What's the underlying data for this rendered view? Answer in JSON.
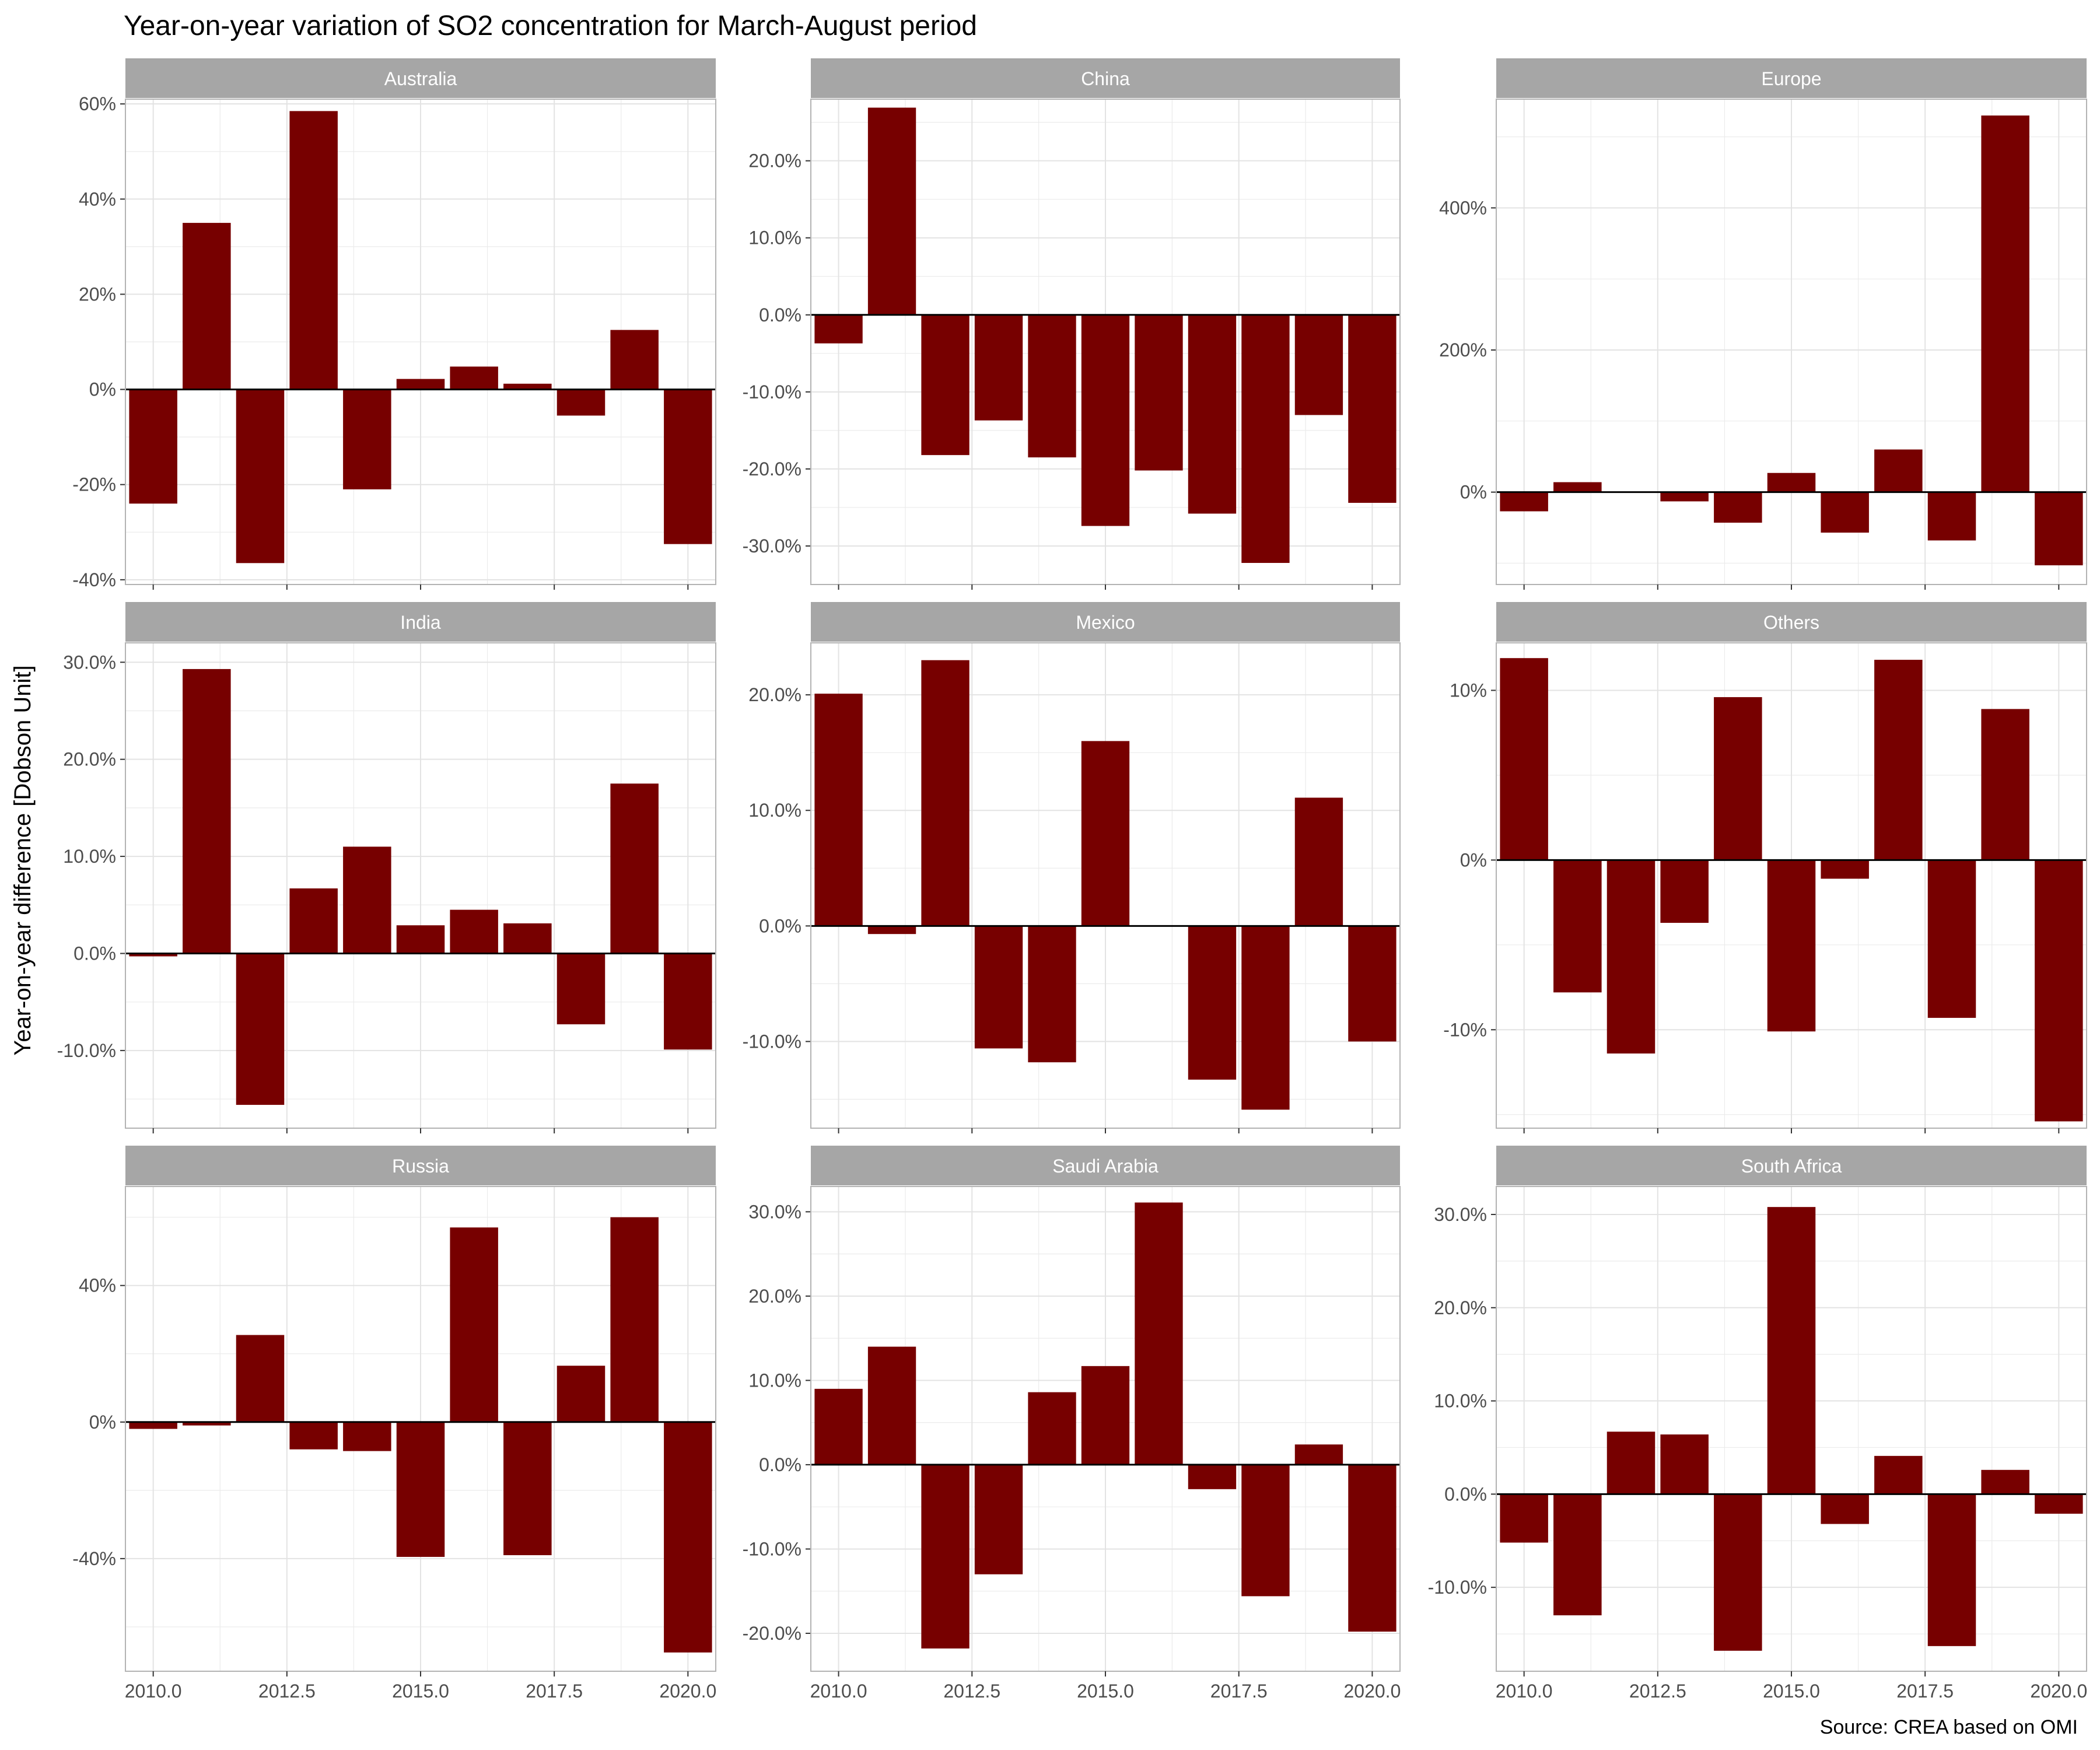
{
  "title": "Year-on-year variation of SO2 concentration for March-August period",
  "ylabel": "Year-on-year difference [Dobson Unit]",
  "caption": "Source: CREA based on OMI",
  "colors": {
    "bar": "#770000",
    "strip": "#a6a6a6",
    "grid": "#ebebeb",
    "panel_border": "#b3b3b3",
    "text": "#4d4d4d"
  },
  "chart_data": {
    "type": "bar",
    "x_axis": {
      "type": "year",
      "range": [
        2009.48,
        2020.52
      ],
      "ticks": [
        2010,
        2012.5,
        2015,
        2017.5,
        2020
      ],
      "tick_labels": [
        "2010.0",
        "2012.5",
        "2015.0",
        "2017.5",
        "2020.0"
      ]
    },
    "years": [
      2010,
      2011,
      2012,
      2013,
      2014,
      2015,
      2016,
      2017,
      2018,
      2019,
      2020
    ],
    "panels": [
      {
        "name": "Australia",
        "ylim": [
          -41,
          61
        ],
        "yticks": [
          -40,
          -20,
          0,
          20,
          40,
          60
        ],
        "ytick_labels": [
          "-40%",
          "-20%",
          "0%",
          "20%",
          "40%",
          "60%"
        ],
        "values": [
          -24,
          35,
          -36.5,
          58.5,
          -21,
          2.2,
          4.8,
          1.2,
          -5.5,
          12.5,
          -32.5
        ]
      },
      {
        "name": "China",
        "ylim": [
          -35,
          28
        ],
        "yticks": [
          -30,
          -20,
          -10,
          0,
          10,
          20
        ],
        "ytick_labels": [
          "-30.0%",
          "-20.0%",
          "-10.0%",
          "0.0%",
          "10.0%",
          "20.0%"
        ],
        "values": [
          -3.7,
          26.9,
          -18.2,
          -13.7,
          -18.5,
          -27.4,
          -20.2,
          -25.8,
          -32.2,
          -13.0,
          -24.4
        ]
      },
      {
        "name": "Europe",
        "ylim": [
          -130,
          553
        ],
        "yticks": [
          0,
          200,
          400
        ],
        "ytick_labels": [
          "0%",
          "200%",
          "400%"
        ],
        "values": [
          -27,
          14,
          0,
          -13,
          -43,
          27,
          -57,
          60,
          -68,
          530,
          -103
        ]
      },
      {
        "name": "India",
        "ylim": [
          -18,
          32
        ],
        "yticks": [
          -10,
          0,
          10,
          20,
          30
        ],
        "ytick_labels": [
          "-10.0%",
          "0.0%",
          "10.0%",
          "20.0%",
          "30.0%"
        ],
        "values": [
          -0.3,
          29.3,
          -15.6,
          6.7,
          11.0,
          2.9,
          4.5,
          3.1,
          -7.3,
          17.5,
          -9.9
        ]
      },
      {
        "name": "Mexico",
        "ylim": [
          -17.5,
          24.5
        ],
        "yticks": [
          -10,
          0,
          10,
          20
        ],
        "ytick_labels": [
          "-10.0%",
          "0.0%",
          "10.0%",
          "20.0%"
        ],
        "values": [
          20.1,
          -0.7,
          23.0,
          -10.6,
          -11.8,
          16.0,
          0,
          -13.3,
          -15.9,
          11.1,
          -10.0
        ]
      },
      {
        "name": "Others",
        "ylim": [
          -15.8,
          12.8
        ],
        "yticks": [
          -10,
          0,
          10
        ],
        "ytick_labels": [
          "-10%",
          "0%",
          "10%"
        ],
        "values": [
          11.9,
          -7.8,
          -11.4,
          -3.7,
          9.6,
          -10.1,
          -1.1,
          11.8,
          -9.3,
          8.9,
          -15.4
        ]
      },
      {
        "name": "Russia",
        "ylim": [
          -73,
          69
        ],
        "yticks": [
          -40,
          0,
          40
        ],
        "ytick_labels": [
          "-40%",
          "0%",
          "40%"
        ],
        "values": [
          -2,
          -1,
          25.5,
          -8,
          -8.5,
          -39.5,
          57,
          -39,
          16.5,
          60,
          -67.5
        ]
      },
      {
        "name": "Saudi Arabia",
        "ylim": [
          -24.5,
          33
        ],
        "yticks": [
          -20,
          -10,
          0,
          10,
          20,
          30
        ],
        "ytick_labels": [
          "-20.0%",
          "-10.0%",
          "0.0%",
          "10.0%",
          "20.0%",
          "30.0%"
        ],
        "values": [
          9.0,
          14.0,
          -21.8,
          -13.0,
          8.6,
          11.7,
          31.1,
          -2.9,
          -15.6,
          2.4,
          -19.8
        ]
      },
      {
        "name": "South Africa",
        "ylim": [
          -19,
          33
        ],
        "yticks": [
          -10,
          0,
          10,
          20,
          30
        ],
        "ytick_labels": [
          "-10.0%",
          "0.0%",
          "10.0%",
          "20.0%",
          "30.0%"
        ],
        "values": [
          -5.2,
          -13.0,
          6.7,
          6.4,
          -16.8,
          30.8,
          -3.2,
          4.1,
          -16.3,
          2.6,
          -2.1
        ]
      }
    ]
  }
}
